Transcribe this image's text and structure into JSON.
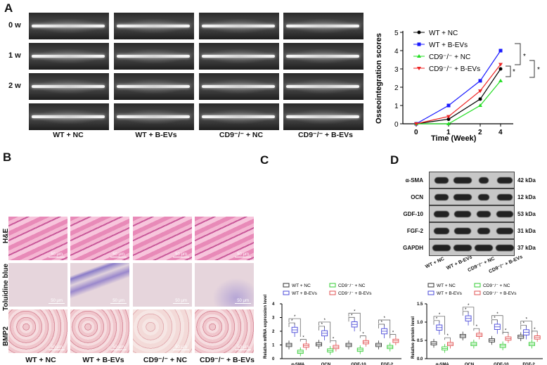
{
  "panels": {
    "A": {
      "label": "A",
      "row_labels": [
        "0 w",
        "1 w",
        "2 w",
        "4 w"
      ],
      "column_labels": [
        "WT + NC",
        "WT + B-EVs",
        "CD9⁻/⁻ + NC",
        "CD9⁻/⁻ + B-EVs"
      ]
    },
    "B": {
      "label": "B",
      "row_labels": [
        "H&E",
        "Toluidine blue",
        "BMP2"
      ],
      "scale_bar": "50 μm",
      "column_labels": [
        "WT + NC",
        "WT + B-EVs",
        "CD9⁻/⁻ + NC",
        "CD9⁻/⁻ + B-EVs"
      ]
    },
    "C": {
      "label": "C"
    },
    "D": {
      "label": "D",
      "blot_rows": [
        {
          "protein": "α-SMA",
          "kda": "42 kDa"
        },
        {
          "protein": "OCN",
          "kda": "12 kDa"
        },
        {
          "protein": "GDF-10",
          "kda": "53 kDa"
        },
        {
          "protein": "FGF-2",
          "kda": "31 kDa"
        },
        {
          "protein": "GAPDH",
          "kda": "37 kDa"
        }
      ],
      "lane_labels": [
        "WT + NC",
        "WT + B-EVs",
        "CD9⁻/⁻ + NC",
        "CD9⁻/⁻ + B-EVs"
      ]
    }
  },
  "legend": {
    "wt_nc": "WT + NC",
    "wt_bevs": "WT + B-EVs",
    "cd9_nc": "CD9⁻/⁻ + NC",
    "cd9_bevs": "CD9⁻/⁻ + B-EVs"
  },
  "colors": {
    "wt_nc": "#000000",
    "wt_bevs": "#1a1aff",
    "cd9_nc": "#22dd22",
    "cd9_bevs": "#ee2222",
    "box_wt_bevs": "#4848d8",
    "box_cd9_nc": "#33cc33",
    "box_cd9_bevs": "#e05050"
  },
  "significance": "*",
  "chart_data": [
    {
      "type": "line",
      "panel": "A",
      "title": "",
      "xlabel": "Time (Week)",
      "ylabel": "Osseointegration scores",
      "x": [
        0,
        1,
        2,
        4
      ],
      "ylim": [
        0,
        5
      ],
      "yticks": [
        0,
        1,
        2,
        3,
        4,
        5
      ],
      "series": [
        {
          "name": "WT + NC",
          "values": [
            0,
            0.25,
            1.35,
            3.0
          ]
        },
        {
          "name": "WT + B-EVs",
          "values": [
            0,
            1.0,
            2.35,
            4.0
          ]
        },
        {
          "name": "CD9-/- + NC",
          "values": [
            0,
            0,
            1.0,
            2.35
          ]
        },
        {
          "name": "CD9-/- + B-EVs",
          "values": [
            0,
            0.4,
            1.8,
            3.25
          ]
        }
      ],
      "annotations": [
        "*",
        "*",
        "*"
      ]
    },
    {
      "type": "box",
      "panel": "C",
      "ylabel": "Relative mRNA expression level",
      "categories": [
        "α-SMA",
        "OCN",
        "GDF-10",
        "FGF-2"
      ],
      "ylim": [
        0,
        4
      ],
      "yticks": [
        0,
        1,
        2,
        3,
        4
      ],
      "series": [
        {
          "name": "WT + NC",
          "values": [
            1.0,
            1.05,
            1.0,
            1.0
          ]
        },
        {
          "name": "WT + B-EVs",
          "values": [
            2.1,
            1.85,
            2.5,
            2.0
          ]
        },
        {
          "name": "CD9-/- + NC",
          "values": [
            0.5,
            0.6,
            0.65,
            0.85
          ]
        },
        {
          "name": "CD9-/- + B-EVs",
          "values": [
            0.95,
            0.85,
            1.2,
            1.3
          ]
        }
      ]
    },
    {
      "type": "box",
      "panel": "D",
      "ylabel": "Relative protein level",
      "categories": [
        "α-SMA",
        "OCN",
        "GDF-10",
        "FGF-2"
      ],
      "ylim": [
        0,
        1.5
      ],
      "yticks": [
        0.0,
        0.5,
        1.0,
        1.5
      ],
      "series": [
        {
          "name": "WT + NC",
          "values": [
            0.42,
            0.62,
            0.5,
            0.6
          ]
        },
        {
          "name": "WT + B-EVs",
          "values": [
            0.85,
            1.1,
            0.87,
            0.72
          ]
        },
        {
          "name": "CD9-/- + NC",
          "values": [
            0.28,
            0.4,
            0.35,
            0.4
          ]
        },
        {
          "name": "CD9-/- + B-EVs",
          "values": [
            0.4,
            0.65,
            0.55,
            0.58
          ]
        }
      ]
    }
  ]
}
